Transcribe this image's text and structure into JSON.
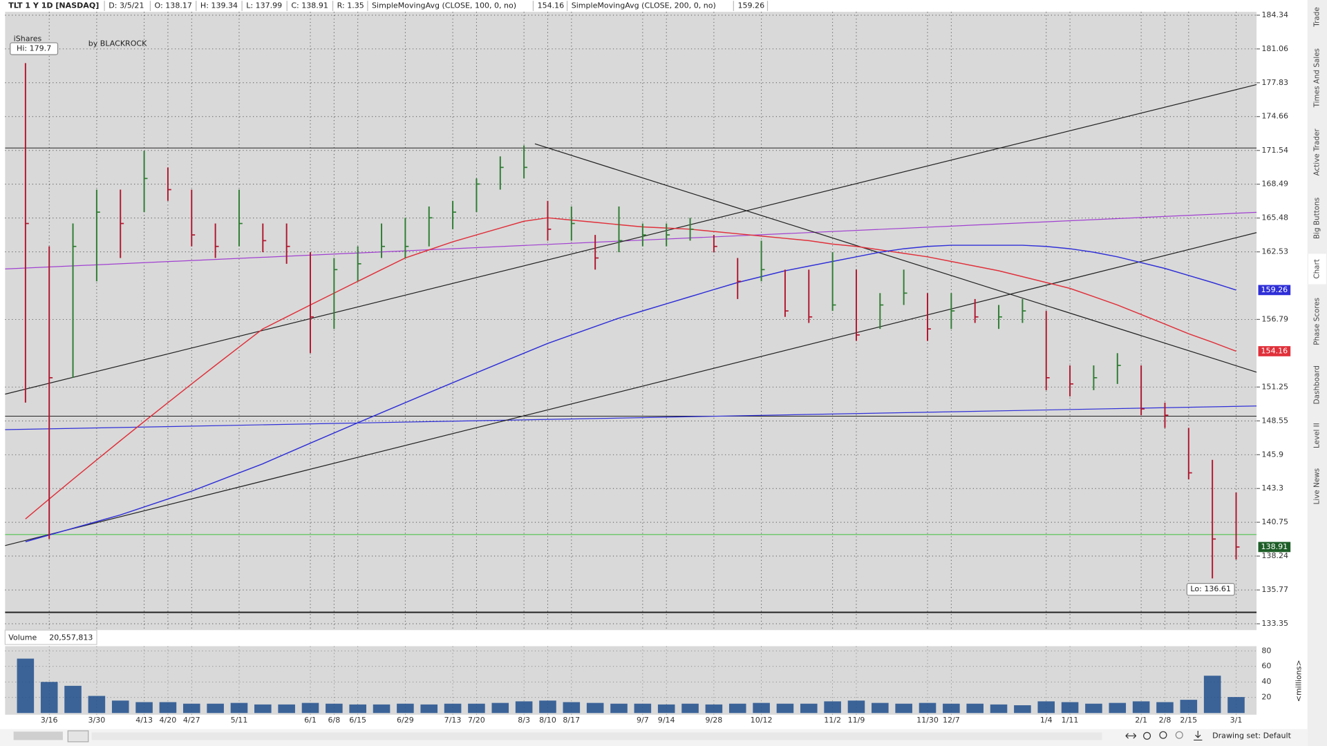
{
  "header": {
    "symbol": "TLT 1 Y 1D [NASDAQ]",
    "fields": [
      "D: 3/5/21",
      "O: 138.17",
      "H: 139.34",
      "L: 137.99",
      "C: 138.91",
      "R: 1.35"
    ]
  },
  "watermark": {
    "brand": "iShares",
    "by": "by BLACKROCK"
  },
  "side_tabs": [
    "Trade",
    "Times And Sales",
    "Active Trader",
    "Big Buttons",
    "Chart",
    "Phase Scores",
    "Dashboard",
    "Level II",
    "Live News"
  ],
  "footer": {
    "drawing_set": "Drawing set: Default"
  },
  "chart_data": [
    {
      "type": "ohlc",
      "categories": [
        null,
        "3/16",
        null,
        "3/30",
        null,
        "4/13",
        "4/20",
        "4/27",
        null,
        "5/11",
        null,
        null,
        "6/1",
        "6/8",
        "6/15",
        null,
        "6/29",
        null,
        "7/13",
        "7/20",
        null,
        "8/3",
        "8/10",
        "8/17",
        null,
        null,
        "9/7",
        "9/14",
        null,
        "9/28",
        null,
        "10/12",
        null,
        null,
        "11/2",
        "11/9",
        null,
        null,
        "11/30",
        "12/7",
        null,
        null,
        null,
        "1/4",
        "1/11",
        null,
        null,
        "2/1",
        "2/8",
        "2/15",
        null,
        "3/1"
      ],
      "high": [
        179.7,
        163,
        165,
        168,
        168,
        171.5,
        170,
        168,
        165,
        168,
        165,
        165,
        162.5,
        162,
        163,
        165,
        165.5,
        166.5,
        167,
        169,
        171,
        172,
        167,
        166.5,
        164,
        166.5,
        165,
        165,
        165.5,
        164,
        162,
        163.5,
        161,
        161,
        162.5,
        161,
        159,
        161,
        159,
        159,
        158.5,
        158,
        158.5,
        157.5,
        153,
        153,
        154,
        153,
        150,
        148,
        145.5,
        143
      ],
      "low": [
        150,
        139.5,
        152,
        160,
        162,
        166,
        167,
        163,
        162,
        163,
        162.5,
        161.5,
        154,
        156,
        160,
        162,
        162,
        163,
        164.5,
        166,
        168,
        169,
        163.5,
        163.5,
        161,
        162.5,
        163,
        163,
        163.5,
        162.5,
        158.5,
        160,
        157,
        156.5,
        157.5,
        155,
        156,
        158,
        155,
        156,
        156.5,
        156,
        156.5,
        151,
        150.5,
        151,
        151.5,
        149,
        148,
        144,
        136.61,
        137.99
      ],
      "close": [
        165,
        152,
        163,
        166,
        165,
        169,
        168,
        164,
        163,
        165,
        163.5,
        163,
        157,
        161,
        161.5,
        163,
        163,
        165.5,
        166,
        168.5,
        170,
        170,
        164.5,
        165,
        162,
        163.5,
        164,
        164,
        164.5,
        163,
        160,
        161,
        157.5,
        157,
        158,
        155.5,
        158,
        159,
        156,
        157.5,
        157,
        157,
        157.5,
        152,
        151.5,
        152,
        153,
        149.5,
        149,
        144.5,
        139.5,
        138.91
      ],
      "up_color": "#2e7d32",
      "down_color": "#b0172e",
      "series": [
        {
          "name": "SimpleMovingAvg (CLOSE, 100, 0, no)",
          "color": "#e0303a",
          "values": [
            141.0,
            142.5,
            144,
            145.5,
            147,
            148.5,
            150,
            151.5,
            153,
            154.5,
            156,
            157,
            158,
            159,
            160,
            161,
            162,
            162.7,
            163.4,
            164,
            164.6,
            165.2,
            165.5,
            165.3,
            165.1,
            164.9,
            164.7,
            164.6,
            164.5,
            164.3,
            164.1,
            163.9,
            163.7,
            163.5,
            163.2,
            163.0,
            162.7,
            162.4,
            162.1,
            161.7,
            161.3,
            160.9,
            160.4,
            159.9,
            159.4,
            158.7,
            158.0,
            157.2,
            156.4,
            155.6,
            154.9,
            154.16
          ]
        },
        {
          "name": "SimpleMovingAvg (CLOSE, 200, 0, no)",
          "color": "#2f2fd8",
          "values": [
            139.3,
            139.8,
            140.3,
            140.8,
            141.3,
            141.9,
            142.5,
            143.1,
            143.8,
            144.5,
            145.2,
            146,
            146.8,
            147.6,
            148.4,
            149.2,
            150,
            150.8,
            151.6,
            152.4,
            153.2,
            154,
            154.8,
            155.5,
            156.2,
            156.9,
            157.5,
            158.1,
            158.7,
            159.3,
            159.9,
            160.4,
            160.9,
            161.3,
            161.7,
            162.1,
            162.5,
            162.8,
            163,
            163.1,
            163.1,
            163.1,
            163.1,
            163,
            162.8,
            162.5,
            162.1,
            161.6,
            161.1,
            160.5,
            159.9,
            159.26
          ]
        }
      ],
      "annotations": [
        "Hi: 179.7",
        "Lo: 136.61"
      ],
      "ylim": [
        132.9,
        185.0
      ],
      "log_scale": true,
      "grid": true,
      "yticks": [
        133.35,
        135.77,
        138.24,
        140.75,
        143.3,
        145.9,
        148.55,
        151.25,
        156.79,
        162.53,
        165.48,
        168.49,
        171.54,
        174.66,
        177.83,
        181.06,
        184.34
      ]
    },
    {
      "type": "bar",
      "title": "Volume",
      "readout": "20,557,813",
      "y_label": "<millions>",
      "color": "#1f4e8c",
      "categories": [
        null,
        "3/16",
        null,
        "3/30",
        null,
        "4/13",
        "4/20",
        "4/27",
        null,
        "5/11",
        null,
        null,
        "6/1",
        "6/8",
        "6/15",
        null,
        "6/29",
        null,
        "7/13",
        "7/20",
        null,
        "8/3",
        "8/10",
        "8/17",
        null,
        null,
        "9/7",
        "9/14",
        null,
        "9/28",
        null,
        "10/12",
        null,
        null,
        "11/2",
        "11/9",
        null,
        null,
        "11/30",
        "12/7",
        null,
        null,
        null,
        "1/4",
        "1/11",
        null,
        null,
        "2/1",
        "2/8",
        "2/15",
        null,
        "3/1"
      ],
      "values": [
        70,
        40,
        35,
        22,
        16,
        14,
        14,
        12,
        12,
        13,
        11,
        11,
        13,
        12,
        11,
        11,
        12,
        11,
        12,
        12,
        13,
        15,
        16,
        14,
        13,
        12,
        12,
        11,
        12,
        11,
        12,
        13,
        12,
        12,
        15,
        16,
        13,
        12,
        13,
        12,
        12,
        11,
        10,
        15,
        14,
        12,
        13,
        15,
        14,
        17,
        48,
        20.557813
      ],
      "ylim": [
        0,
        86
      ],
      "yticks": [
        20,
        40,
        60,
        80
      ]
    }
  ]
}
